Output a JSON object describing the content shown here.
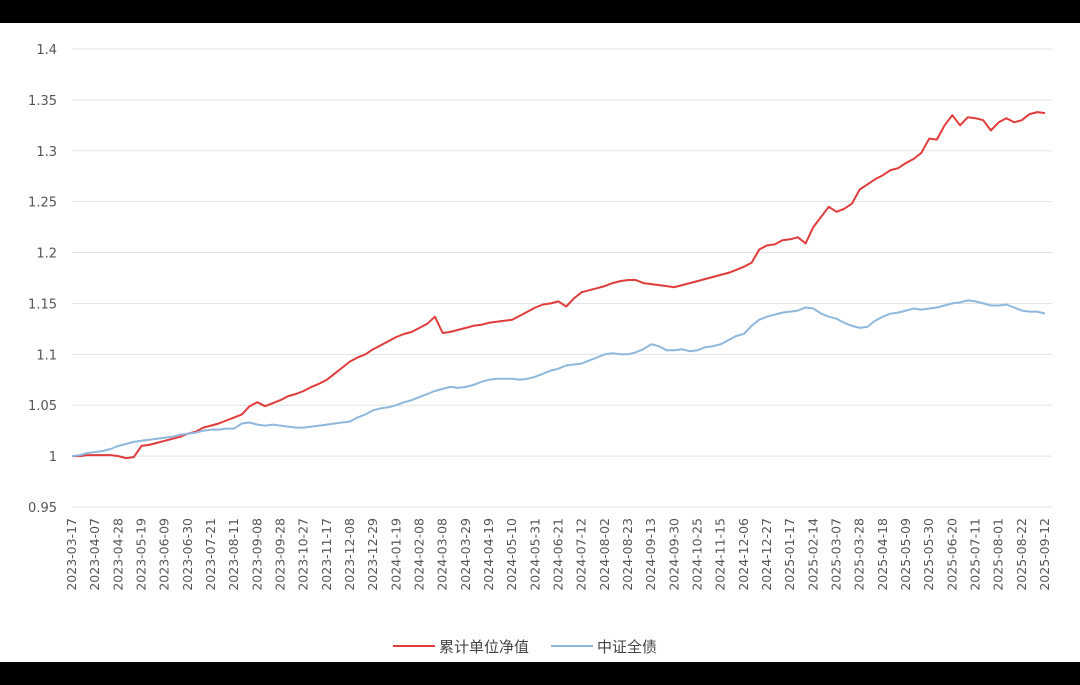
{
  "chart_data": {
    "type": "line",
    "categories": [
      "2023-03-17",
      null,
      null,
      "2023-04-07",
      null,
      null,
      "2023-04-28",
      null,
      null,
      "2023-05-19",
      null,
      null,
      "2023-06-09",
      null,
      null,
      "2023-06-30",
      null,
      null,
      "2023-07-21",
      null,
      null,
      "2023-08-11",
      null,
      null,
      "2023-09-08",
      null,
      null,
      "2023-09-28",
      null,
      null,
      "2023-10-27",
      null,
      null,
      "2023-11-17",
      null,
      null,
      "2023-12-08",
      null,
      null,
      "2023-12-29",
      null,
      null,
      "2024-01-19",
      null,
      null,
      "2024-02-08",
      null,
      null,
      "2024-03-08",
      null,
      null,
      "2024-03-29",
      null,
      null,
      "2024-04-19",
      null,
      null,
      "2024-05-10",
      null,
      null,
      "2024-05-31",
      null,
      null,
      "2024-06-21",
      null,
      null,
      "2024-07-12",
      null,
      null,
      "2024-08-02",
      null,
      null,
      "2024-08-23",
      null,
      null,
      "2024-09-13",
      null,
      null,
      "2024-09-30",
      null,
      null,
      "2024-10-25",
      null,
      null,
      "2024-11-15",
      null,
      null,
      "2024-12-06",
      null,
      null,
      "2024-12-27",
      null,
      null,
      "2025-01-17",
      null,
      null,
      "2025-02-14",
      null,
      null,
      "2025-03-07",
      null,
      null,
      "2025-03-28",
      null,
      null,
      "2025-04-18",
      null,
      null,
      "2025-05-09",
      null,
      null,
      "2025-05-30",
      null,
      null,
      "2025-06-20",
      null,
      null,
      "2025-07-11",
      null,
      null,
      "2025-08-01",
      null,
      null,
      "2025-08-22",
      null,
      null,
      "2025-09-12"
    ],
    "series": [
      {
        "name": "累计单位净值",
        "color": "#e03c3c",
        "values": [
          1.0,
          1.0,
          1.001,
          1.001,
          1.001,
          1.001,
          1.0,
          0.998,
          0.999,
          1.01,
          1.011,
          1.013,
          1.015,
          1.017,
          1.019,
          1.022,
          1.024,
          1.028,
          1.03,
          1.032,
          1.035,
          1.038,
          1.041,
          1.049,
          1.053,
          1.049,
          1.052,
          1.055,
          1.059,
          1.061,
          1.064,
          1.068,
          1.071,
          1.075,
          1.081,
          1.087,
          1.093,
          1.097,
          1.1,
          1.105,
          1.109,
          1.113,
          1.117,
          1.12,
          1.122,
          1.126,
          1.13,
          1.137,
          1.121,
          1.122,
          1.124,
          1.126,
          1.128,
          1.129,
          1.131,
          1.132,
          1.133,
          1.134,
          1.138,
          1.142,
          1.146,
          1.149,
          1.15,
          1.152,
          1.147,
          1.155,
          1.161,
          1.163,
          1.165,
          1.167,
          1.17,
          1.172,
          1.173,
          1.173,
          1.17,
          1.169,
          1.168,
          1.167,
          1.166,
          1.168,
          1.17,
          1.172,
          1.174,
          1.176,
          1.178,
          1.18,
          1.183,
          1.186,
          1.19,
          1.203,
          1.207,
          1.208,
          1.212,
          1.213,
          1.215,
          1.209,
          1.225,
          1.235,
          1.245,
          1.24,
          1.243,
          1.248,
          1.262,
          1.267,
          1.272,
          1.276,
          1.281,
          1.283,
          1.288,
          1.292,
          1.298,
          1.312,
          1.311,
          1.325,
          1.335,
          1.325,
          1.333,
          1.332,
          1.33,
          1.32,
          1.328,
          1.332,
          1.328,
          1.33,
          1.336,
          1.338,
          1.337
        ]
      },
      {
        "name": "中证全债",
        "color": "#8fb8dc",
        "values": [
          1.0,
          1.001,
          1.003,
          1.004,
          1.005,
          1.007,
          1.01,
          1.012,
          1.014,
          1.015,
          1.016,
          1.017,
          1.018,
          1.019,
          1.021,
          1.022,
          1.023,
          1.025,
          1.026,
          1.026,
          1.027,
          1.027,
          1.032,
          1.033,
          1.031,
          1.03,
          1.031,
          1.03,
          1.029,
          1.028,
          1.028,
          1.029,
          1.03,
          1.031,
          1.032,
          1.033,
          1.034,
          1.038,
          1.041,
          1.045,
          1.047,
          1.048,
          1.05,
          1.053,
          1.055,
          1.058,
          1.061,
          1.064,
          1.066,
          1.068,
          1.067,
          1.068,
          1.07,
          1.073,
          1.075,
          1.076,
          1.076,
          1.076,
          1.075,
          1.076,
          1.078,
          1.081,
          1.084,
          1.086,
          1.089,
          1.09,
          1.091,
          1.094,
          1.097,
          1.1,
          1.101,
          1.1,
          1.1,
          1.102,
          1.105,
          1.11,
          1.108,
          1.104,
          1.104,
          1.105,
          1.103,
          1.104,
          1.107,
          1.108,
          1.11,
          1.114,
          1.118,
          1.12,
          1.128,
          1.134,
          1.137,
          1.139,
          1.141,
          1.142,
          1.143,
          1.146,
          1.145,
          1.14,
          1.137,
          1.135,
          1.131,
          1.128,
          1.126,
          1.127,
          1.133,
          1.137,
          1.14,
          1.141,
          1.143,
          1.145,
          1.144,
          1.145,
          1.146,
          1.148,
          1.15,
          1.151,
          1.153,
          1.152,
          1.15,
          1.148,
          1.148,
          1.149,
          1.146,
          1.143,
          1.142,
          1.142,
          1.14
        ]
      }
    ],
    "ylim": [
      0.95,
      1.4
    ],
    "yticks": [
      0.95,
      1,
      1.05,
      1.1,
      1.15,
      1.2,
      1.25,
      1.3,
      1.35,
      1.4
    ],
    "grid": true,
    "legend": "bottom"
  }
}
